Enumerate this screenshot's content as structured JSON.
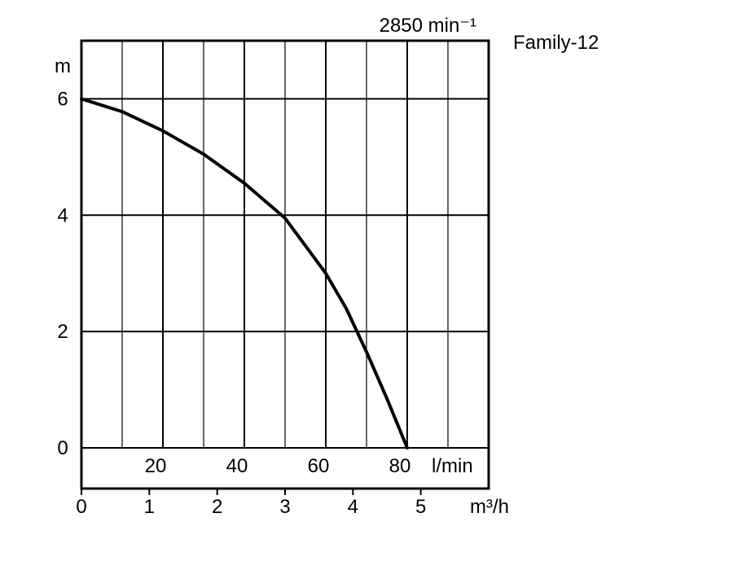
{
  "chart_data": {
    "type": "line",
    "title": "Family-12",
    "speed_label": "2850 min⁻¹",
    "ylabel": "m",
    "ylim": [
      0,
      7
    ],
    "yticks": [
      0,
      2,
      4,
      6
    ],
    "x_lmin": {
      "label": "l/min",
      "ticks": [
        20,
        40,
        60,
        80
      ],
      "range": [
        0,
        100
      ]
    },
    "x_m3h": {
      "label": "m³/h",
      "ticks": [
        0,
        1,
        2,
        3,
        4,
        5
      ],
      "range": [
        0,
        6
      ]
    },
    "grid": true,
    "series": [
      {
        "x_lmin": [
          0,
          10,
          20,
          30,
          40,
          50,
          60,
          65,
          70,
          75,
          80
        ],
        "y": [
          6.0,
          5.78,
          5.45,
          5.05,
          4.55,
          3.95,
          3.0,
          2.4,
          1.65,
          0.85,
          0.0
        ]
      }
    ]
  }
}
